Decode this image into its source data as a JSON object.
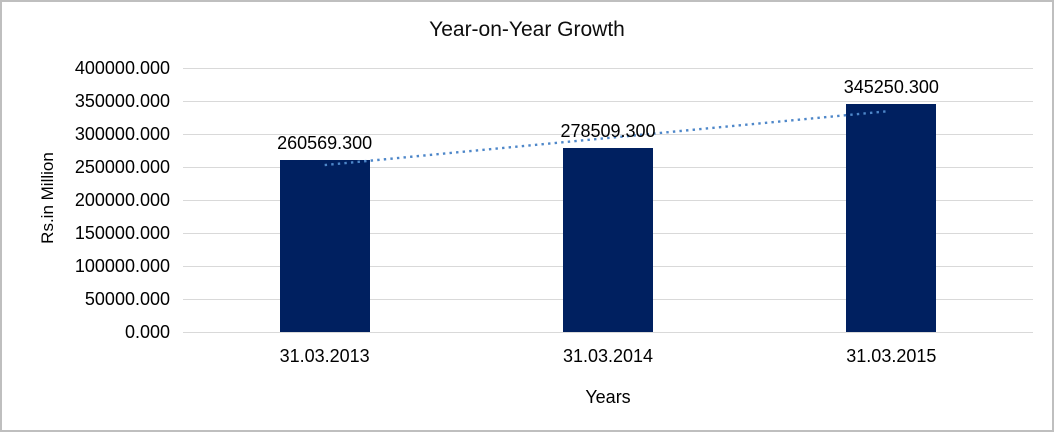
{
  "chart_data": {
    "type": "bar",
    "title": "Year-on-Year Growth",
    "xlabel": "Years",
    "ylabel": "Rs.in Million",
    "categories": [
      "31.03.2013",
      "31.03.2014",
      "31.03.2015"
    ],
    "values": [
      260569.3,
      278509.3,
      345250.3
    ],
    "data_labels": [
      "260569.300",
      "278509.300",
      "345250.300"
    ],
    "ylim": [
      0,
      400000
    ],
    "ytick_step": 50000,
    "ytick_labels_top_to_bottom": [
      "400000.000",
      "350000.000",
      "300000.000",
      "250000.000",
      "200000.000",
      "150000.000",
      "100000.000",
      "50000.000",
      "0.000"
    ],
    "grid": true,
    "legend": "none",
    "bar_color": "#002060",
    "gridline_color": "#d9d9d9",
    "text_color": "#000000",
    "trendline": {
      "type": "linear",
      "style": "dotted",
      "color": "#4e87c9",
      "from_category": "31.03.2013",
      "to_category": "31.03.2015"
    }
  }
}
